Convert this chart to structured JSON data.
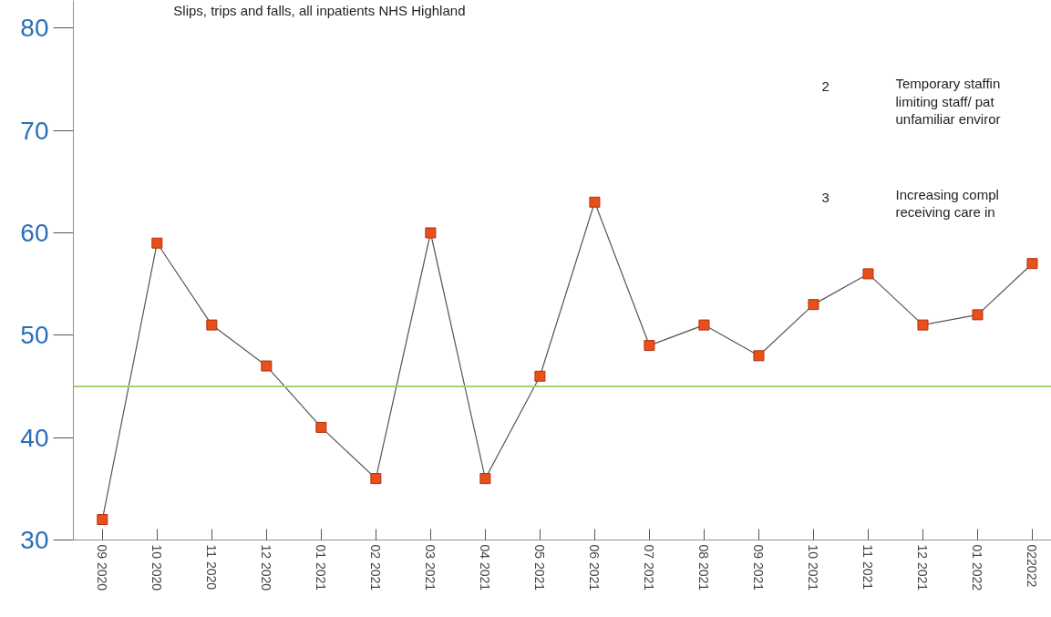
{
  "chart_data": {
    "type": "line",
    "title": "Slips, trips and falls, all inpatients NHS Highland",
    "categories": [
      "09 2020",
      "10 2020",
      "11 2020",
      "12 2020",
      "01 2021",
      "02 2021",
      "03 2021",
      "04 2021",
      "05 2021",
      "06 2021",
      "07 2021",
      "08 2021",
      "09 2021",
      "10 2021",
      "11 2021",
      "12 2021",
      "01 2022",
      "022022"
    ],
    "series": [
      {
        "color": "#e8501a",
        "values": [
          32,
          59,
          51,
          47,
          41,
          36,
          60,
          36,
          46,
          63,
          49,
          51,
          48,
          53,
          56,
          51,
          52,
          57
        ]
      }
    ],
    "ylim": [
      30,
      82.7
    ],
    "yticks": [
      30,
      40,
      50,
      60,
      70,
      80
    ],
    "marker": "square",
    "line_style": "solid",
    "grid": false,
    "ref_lines": [
      {
        "axis": "y",
        "value": 45,
        "color": "#a8d070"
      }
    ],
    "annotations": [
      "2",
      "Temporary staffin",
      "limiting staff/ pat",
      "unfamiliar enviror",
      "3",
      "Increasing compl",
      "receiving care in"
    ]
  }
}
